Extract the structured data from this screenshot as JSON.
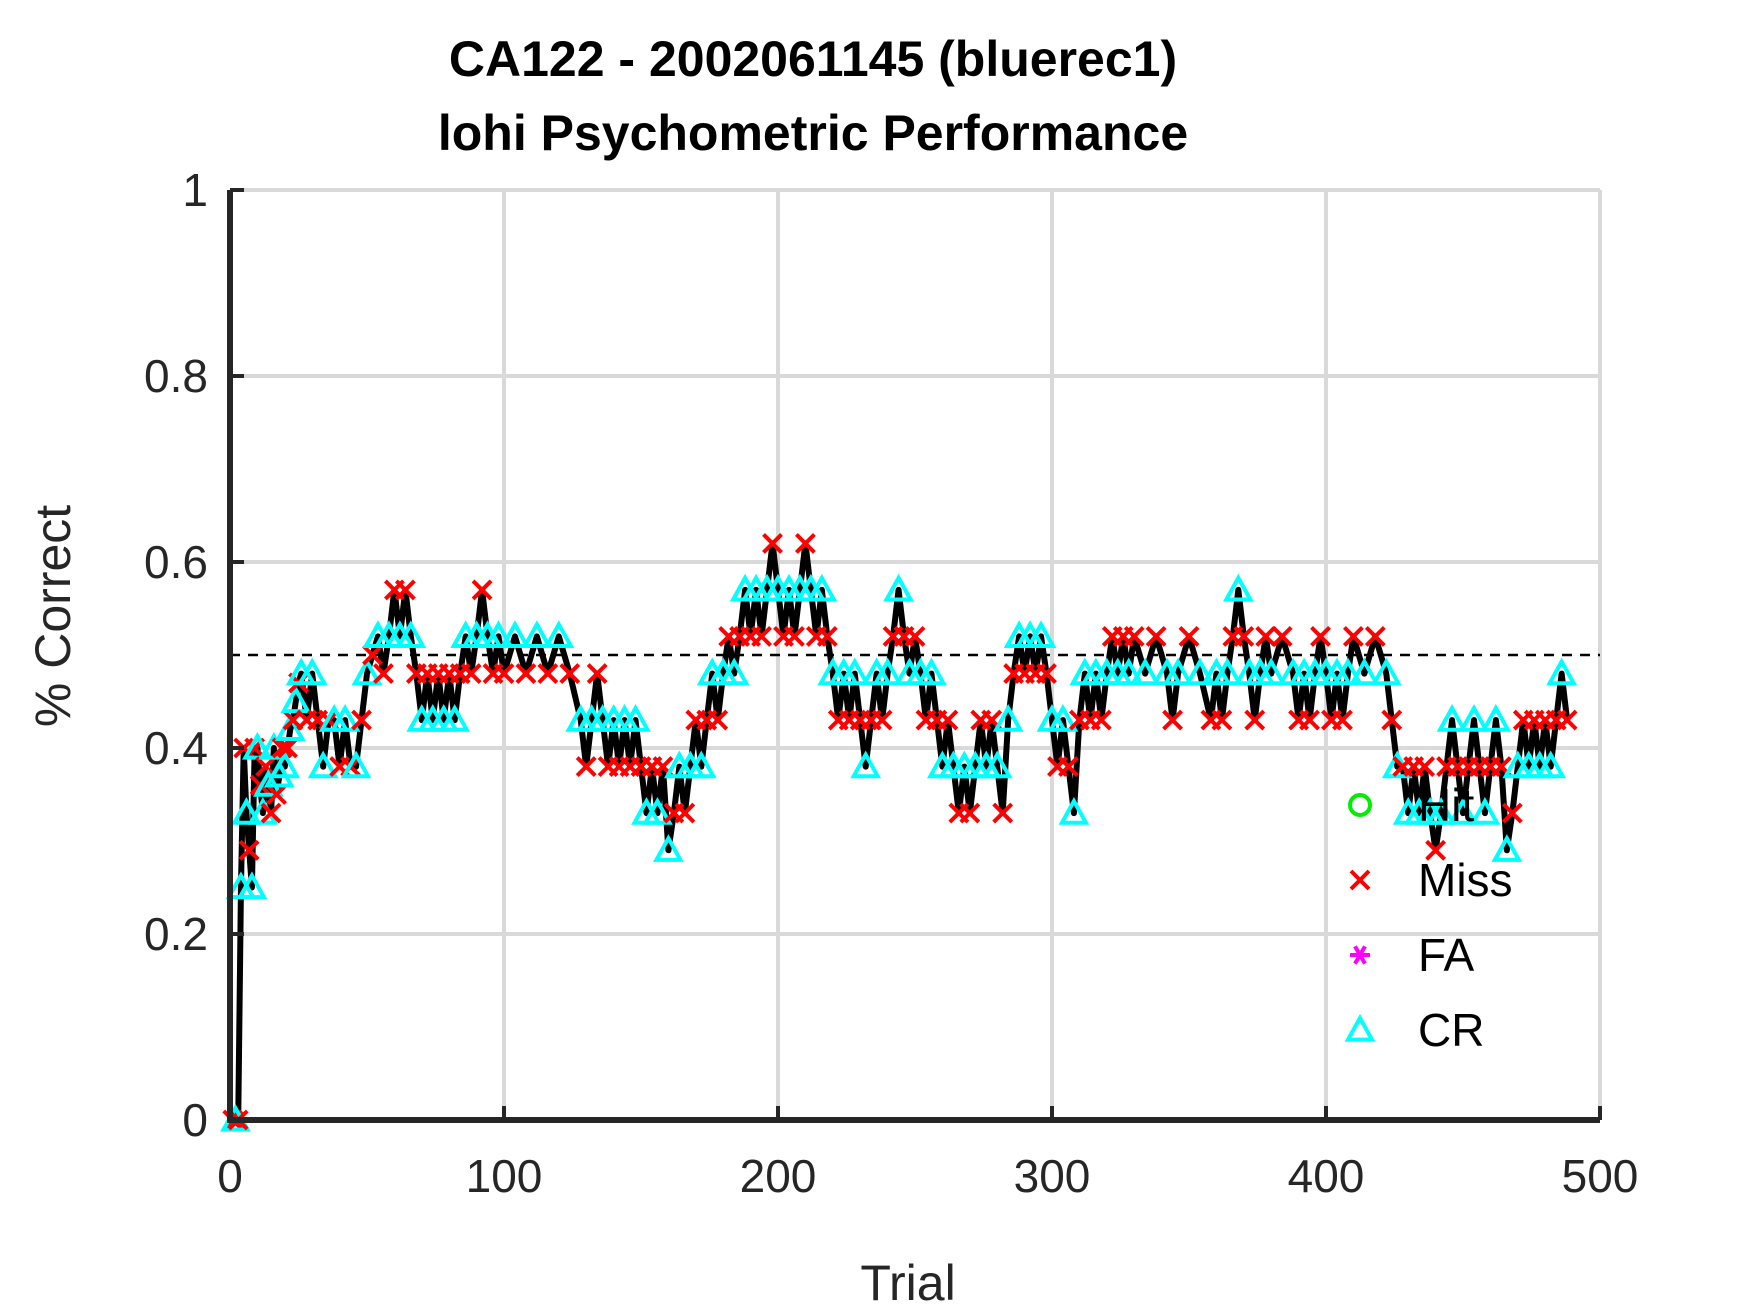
{
  "chart_data": {
    "type": "scatter",
    "title_line1": "CA122 - 2002061145 (bluerec1)",
    "title_line2": "lohi Psychometric Performance",
    "xlabel": "Trial",
    "ylabel": "% Correct",
    "xlim": [
      0,
      500
    ],
    "ylim": [
      0,
      1
    ],
    "xticks": [
      0,
      100,
      200,
      300,
      400,
      500
    ],
    "yticks": [
      0,
      0.2,
      0.4,
      0.6,
      0.8,
      1
    ],
    "xtick_labels": [
      "0",
      "100",
      "200",
      "300",
      "400",
      "500"
    ],
    "ytick_labels": [
      "0",
      "0.2",
      "0.4",
      "0.6",
      "0.8",
      "1"
    ],
    "grid": true,
    "chance_line": 0.5,
    "legend_position": "lower-right",
    "colors": {
      "line": "#000000",
      "hit": "#00ee00",
      "miss": "#ff0000",
      "fa": "#ff00ff",
      "cr": "#00ffff",
      "grid": "#d9d9d9"
    },
    "series": [
      {
        "name": "Hit",
        "marker": "circle",
        "points": []
      },
      {
        "name": "Miss",
        "marker": "x",
        "points": []
      },
      {
        "name": "FA",
        "marker": "asterisk",
        "points": []
      },
      {
        "name": "CR",
        "marker": "triangle",
        "points": []
      }
    ],
    "performance": [
      [
        1,
        0
      ],
      [
        2,
        0
      ],
      [
        3,
        0
      ],
      [
        4,
        0.25
      ],
      [
        5,
        0.4
      ],
      [
        6,
        0.33
      ],
      [
        7,
        0.29
      ],
      [
        8,
        0.25
      ],
      [
        9,
        0.4
      ],
      [
        10,
        0.4
      ],
      [
        11,
        0.36
      ],
      [
        12,
        0.33
      ],
      [
        13,
        0.38
      ],
      [
        14,
        0.36
      ],
      [
        15,
        0.33
      ],
      [
        16,
        0.4
      ],
      [
        17,
        0.35
      ],
      [
        18,
        0.37
      ],
      [
        19,
        0.4
      ],
      [
        20,
        0.38
      ],
      [
        21,
        0.4
      ],
      [
        22,
        0.42
      ],
      [
        23,
        0.43
      ],
      [
        24,
        0.45
      ],
      [
        25,
        0.47
      ],
      [
        26,
        0.48
      ],
      [
        28,
        0.43
      ],
      [
        30,
        0.48
      ],
      [
        32,
        0.43
      ],
      [
        34,
        0.38
      ],
      [
        36,
        0.43
      ],
      [
        38,
        0.43
      ],
      [
        40,
        0.38
      ],
      [
        42,
        0.43
      ],
      [
        44,
        0.38
      ],
      [
        46,
        0.38
      ],
      [
        48,
        0.43
      ],
      [
        50,
        0.48
      ],
      [
        52,
        0.5
      ],
      [
        54,
        0.52
      ],
      [
        56,
        0.48
      ],
      [
        58,
        0.52
      ],
      [
        60,
        0.57
      ],
      [
        62,
        0.52
      ],
      [
        64,
        0.57
      ],
      [
        66,
        0.52
      ],
      [
        68,
        0.48
      ],
      [
        70,
        0.43
      ],
      [
        72,
        0.48
      ],
      [
        74,
        0.43
      ],
      [
        76,
        0.48
      ],
      [
        78,
        0.43
      ],
      [
        80,
        0.48
      ],
      [
        82,
        0.43
      ],
      [
        84,
        0.48
      ],
      [
        86,
        0.52
      ],
      [
        88,
        0.48
      ],
      [
        90,
        0.52
      ],
      [
        92,
        0.57
      ],
      [
        94,
        0.52
      ],
      [
        96,
        0.48
      ],
      [
        98,
        0.52
      ],
      [
        100,
        0.48
      ],
      [
        104,
        0.52
      ],
      [
        108,
        0.48
      ],
      [
        112,
        0.52
      ],
      [
        116,
        0.48
      ],
      [
        120,
        0.52
      ],
      [
        124,
        0.48
      ],
      [
        128,
        0.43
      ],
      [
        130,
        0.38
      ],
      [
        132,
        0.43
      ],
      [
        134,
        0.48
      ],
      [
        136,
        0.43
      ],
      [
        138,
        0.38
      ],
      [
        140,
        0.43
      ],
      [
        142,
        0.38
      ],
      [
        144,
        0.43
      ],
      [
        146,
        0.38
      ],
      [
        148,
        0.43
      ],
      [
        150,
        0.38
      ],
      [
        152,
        0.33
      ],
      [
        154,
        0.38
      ],
      [
        156,
        0.33
      ],
      [
        158,
        0.38
      ],
      [
        160,
        0.29
      ],
      [
        162,
        0.33
      ],
      [
        164,
        0.38
      ],
      [
        166,
        0.33
      ],
      [
        168,
        0.38
      ],
      [
        170,
        0.43
      ],
      [
        172,
        0.38
      ],
      [
        174,
        0.43
      ],
      [
        176,
        0.48
      ],
      [
        178,
        0.43
      ],
      [
        180,
        0.48
      ],
      [
        182,
        0.52
      ],
      [
        184,
        0.48
      ],
      [
        186,
        0.52
      ],
      [
        188,
        0.57
      ],
      [
        190,
        0.52
      ],
      [
        192,
        0.57
      ],
      [
        194,
        0.52
      ],
      [
        196,
        0.57
      ],
      [
        198,
        0.62
      ],
      [
        200,
        0.57
      ],
      [
        202,
        0.52
      ],
      [
        204,
        0.57
      ],
      [
        206,
        0.52
      ],
      [
        208,
        0.57
      ],
      [
        210,
        0.62
      ],
      [
        212,
        0.57
      ],
      [
        214,
        0.52
      ],
      [
        216,
        0.57
      ],
      [
        218,
        0.52
      ],
      [
        220,
        0.48
      ],
      [
        222,
        0.43
      ],
      [
        224,
        0.48
      ],
      [
        226,
        0.43
      ],
      [
        228,
        0.48
      ],
      [
        230,
        0.43
      ],
      [
        232,
        0.38
      ],
      [
        234,
        0.43
      ],
      [
        236,
        0.48
      ],
      [
        238,
        0.43
      ],
      [
        240,
        0.48
      ],
      [
        242,
        0.52
      ],
      [
        244,
        0.57
      ],
      [
        246,
        0.52
      ],
      [
        248,
        0.48
      ],
      [
        250,
        0.52
      ],
      [
        252,
        0.48
      ],
      [
        254,
        0.43
      ],
      [
        256,
        0.48
      ],
      [
        258,
        0.43
      ],
      [
        260,
        0.38
      ],
      [
        262,
        0.43
      ],
      [
        264,
        0.38
      ],
      [
        266,
        0.33
      ],
      [
        268,
        0.38
      ],
      [
        270,
        0.33
      ],
      [
        272,
        0.38
      ],
      [
        274,
        0.43
      ],
      [
        276,
        0.38
      ],
      [
        278,
        0.43
      ],
      [
        280,
        0.38
      ],
      [
        282,
        0.33
      ],
      [
        284,
        0.43
      ],
      [
        286,
        0.48
      ],
      [
        288,
        0.52
      ],
      [
        290,
        0.48
      ],
      [
        292,
        0.52
      ],
      [
        294,
        0.48
      ],
      [
        296,
        0.52
      ],
      [
        298,
        0.48
      ],
      [
        300,
        0.43
      ],
      [
        302,
        0.38
      ],
      [
        304,
        0.43
      ],
      [
        306,
        0.38
      ],
      [
        308,
        0.33
      ],
      [
        310,
        0.43
      ],
      [
        312,
        0.48
      ],
      [
        314,
        0.43
      ],
      [
        316,
        0.48
      ],
      [
        318,
        0.43
      ],
      [
        320,
        0.48
      ],
      [
        322,
        0.52
      ],
      [
        324,
        0.48
      ],
      [
        326,
        0.52
      ],
      [
        328,
        0.48
      ],
      [
        330,
        0.52
      ],
      [
        334,
        0.48
      ],
      [
        338,
        0.52
      ],
      [
        342,
        0.48
      ],
      [
        344,
        0.43
      ],
      [
        346,
        0.48
      ],
      [
        350,
        0.52
      ],
      [
        354,
        0.48
      ],
      [
        358,
        0.43
      ],
      [
        360,
        0.48
      ],
      [
        362,
        0.43
      ],
      [
        364,
        0.48
      ],
      [
        366,
        0.52
      ],
      [
        368,
        0.57
      ],
      [
        370,
        0.52
      ],
      [
        372,
        0.48
      ],
      [
        374,
        0.43
      ],
      [
        376,
        0.48
      ],
      [
        378,
        0.52
      ],
      [
        380,
        0.48
      ],
      [
        384,
        0.52
      ],
      [
        388,
        0.48
      ],
      [
        390,
        0.43
      ],
      [
        392,
        0.48
      ],
      [
        394,
        0.43
      ],
      [
        396,
        0.48
      ],
      [
        398,
        0.52
      ],
      [
        400,
        0.48
      ],
      [
        402,
        0.43
      ],
      [
        404,
        0.48
      ],
      [
        406,
        0.43
      ],
      [
        408,
        0.48
      ],
      [
        410,
        0.52
      ],
      [
        414,
        0.48
      ],
      [
        418,
        0.52
      ],
      [
        422,
        0.48
      ],
      [
        424,
        0.43
      ],
      [
        426,
        0.38
      ],
      [
        428,
        0.38
      ],
      [
        430,
        0.33
      ],
      [
        432,
        0.38
      ],
      [
        434,
        0.33
      ],
      [
        436,
        0.38
      ],
      [
        438,
        0.33
      ],
      [
        440,
        0.29
      ],
      [
        442,
        0.33
      ],
      [
        444,
        0.38
      ],
      [
        446,
        0.43
      ],
      [
        448,
        0.38
      ],
      [
        450,
        0.33
      ],
      [
        452,
        0.38
      ],
      [
        454,
        0.43
      ],
      [
        456,
        0.38
      ],
      [
        458,
        0.33
      ],
      [
        460,
        0.38
      ],
      [
        462,
        0.43
      ],
      [
        464,
        0.38
      ],
      [
        466,
        0.29
      ],
      [
        468,
        0.33
      ],
      [
        470,
        0.38
      ],
      [
        472,
        0.43
      ],
      [
        474,
        0.38
      ],
      [
        476,
        0.43
      ],
      [
        478,
        0.38
      ],
      [
        480,
        0.43
      ],
      [
        482,
        0.38
      ],
      [
        484,
        0.43
      ],
      [
        486,
        0.48
      ],
      [
        488,
        0.43
      ]
    ],
    "miss_idx_note_removed": null
  }
}
